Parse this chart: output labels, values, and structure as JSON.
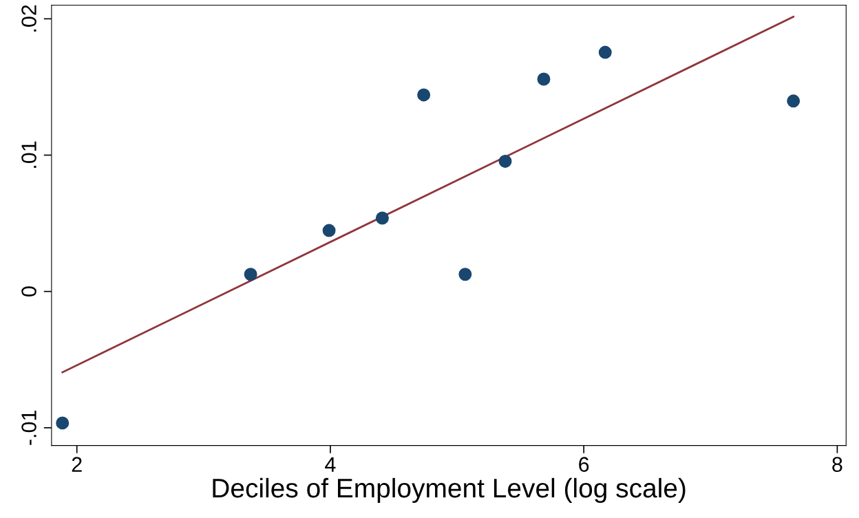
{
  "chart_data": {
    "type": "scatter",
    "xlabel": "Deciles of Employment Level (log scale)",
    "xlim": [
      1.8,
      8.07
    ],
    "xticks": [
      2,
      4,
      6,
      8
    ],
    "ylim": [
      -0.0113,
      0.021
    ],
    "yticks": [
      {
        "value": -0.01,
        "label": "-.01"
      },
      {
        "value": 0,
        "label": "0"
      },
      {
        "value": 0.01,
        "label": ".01"
      },
      {
        "value": 0.02,
        "label": ".02"
      }
    ],
    "grid": false,
    "legend": false,
    "series": [
      {
        "color": "#1a476f",
        "marker": "circle",
        "x": [
          1.886,
          3.371,
          3.99,
          4.41,
          4.737,
          5.064,
          5.38,
          5.684,
          6.169,
          7.654
        ],
        "values": [
          -0.00965,
          0.00126,
          0.00447,
          0.00538,
          0.01442,
          0.00126,
          0.00955,
          0.01558,
          0.01754,
          0.01397
        ]
      },
      {
        "type": "line",
        "color": "#90353b",
        "line_style": "solid",
        "x": [
          1.886,
          7.654
        ],
        "values": [
          -0.00593,
          0.02015
        ]
      }
    ]
  }
}
